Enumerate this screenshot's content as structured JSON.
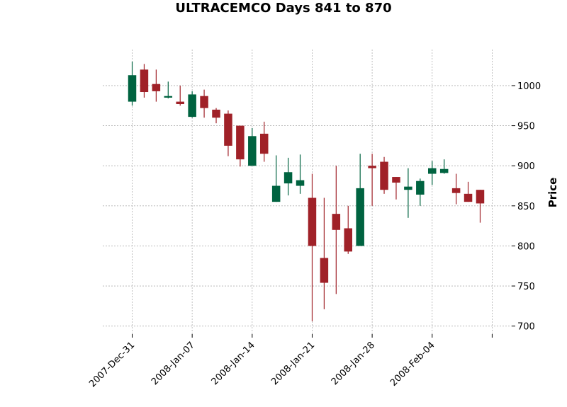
{
  "chart_data": {
    "type": "candlestick",
    "title": "ULTRACEMCO Days 841 to 870",
    "xlabel": "",
    "ylabel": "Price",
    "ylim": [
      690,
      1045
    ],
    "y_ticks": [
      700,
      750,
      800,
      850,
      900,
      950,
      1000
    ],
    "grid": true,
    "colors": {
      "up": "#006340",
      "down": "#a02128"
    },
    "x_ticks": [
      {
        "label": "2007-Dec-31",
        "index": 0
      },
      {
        "label": "2008-Jan-07",
        "index": 5
      },
      {
        "label": "2008-Jan-14",
        "index": 10
      },
      {
        "label": "2008-Jan-21",
        "index": 15
      },
      {
        "label": "2008-Jan-28",
        "index": 20
      },
      {
        "label": "2008-Feb-04",
        "index": 25
      },
      {
        "label": "",
        "index": 30
      }
    ],
    "candles": [
      {
        "date": "2007-12-31",
        "open": 980,
        "high": 1030,
        "low": 975,
        "close": 1013
      },
      {
        "date": "2008-01-01",
        "open": 1020,
        "high": 1027,
        "low": 985,
        "close": 992
      },
      {
        "date": "2008-01-02",
        "open": 1002,
        "high": 1020,
        "low": 980,
        "close": 993
      },
      {
        "date": "2008-01-03",
        "open": 985,
        "high": 1005,
        "low": 984,
        "close": 987
      },
      {
        "date": "2008-01-04",
        "open": 980,
        "high": 1000,
        "low": 975,
        "close": 977
      },
      {
        "date": "2008-01-07",
        "open": 961,
        "high": 993,
        "low": 960,
        "close": 989
      },
      {
        "date": "2008-01-08",
        "open": 987,
        "high": 995,
        "low": 960,
        "close": 972
      },
      {
        "date": "2008-01-09",
        "open": 970,
        "high": 972,
        "low": 953,
        "close": 960
      },
      {
        "date": "2008-01-10",
        "open": 965,
        "high": 969,
        "low": 912,
        "close": 925
      },
      {
        "date": "2008-01-11",
        "open": 950,
        "high": 950,
        "low": 899,
        "close": 908
      },
      {
        "date": "2008-01-14",
        "open": 900,
        "high": 947,
        "low": 900,
        "close": 937
      },
      {
        "date": "2008-01-15",
        "open": 940,
        "high": 955,
        "low": 905,
        "close": 915
      },
      {
        "date": "2008-01-16",
        "open": 855,
        "high": 913,
        "low": 855,
        "close": 875
      },
      {
        "date": "2008-01-17",
        "open": 878,
        "high": 910,
        "low": 863,
        "close": 892
      },
      {
        "date": "2008-01-18",
        "open": 875,
        "high": 914,
        "low": 865,
        "close": 882
      },
      {
        "date": "2008-01-21",
        "open": 860,
        "high": 890,
        "low": 706,
        "close": 800
      },
      {
        "date": "2008-01-22",
        "open": 785,
        "high": 860,
        "low": 721,
        "close": 754
      },
      {
        "date": "2008-01-23",
        "open": 840,
        "high": 900,
        "low": 740,
        "close": 820
      },
      {
        "date": "2008-01-24",
        "open": 822,
        "high": 850,
        "low": 790,
        "close": 793
      },
      {
        "date": "2008-01-25",
        "open": 800,
        "high": 915,
        "low": 800,
        "close": 872
      },
      {
        "date": "2008-01-28",
        "open": 900,
        "high": 915,
        "low": 850,
        "close": 897
      },
      {
        "date": "2008-01-29",
        "open": 905,
        "high": 911,
        "low": 865,
        "close": 870
      },
      {
        "date": "2008-01-30",
        "open": 886,
        "high": 886,
        "low": 858,
        "close": 879
      },
      {
        "date": "2008-01-31",
        "open": 870,
        "high": 897,
        "low": 835,
        "close": 874
      },
      {
        "date": "2008-02-01",
        "open": 864,
        "high": 884,
        "low": 850,
        "close": 881
      },
      {
        "date": "2008-02-04",
        "open": 890,
        "high": 906,
        "low": 876,
        "close": 897
      },
      {
        "date": "2008-02-05",
        "open": 891,
        "high": 908,
        "low": 890,
        "close": 896
      },
      {
        "date": "2008-02-06",
        "open": 872,
        "high": 890,
        "low": 852,
        "close": 866
      },
      {
        "date": "2008-02-07",
        "open": 865,
        "high": 880,
        "low": 855,
        "close": 855
      },
      {
        "date": "2008-02-08",
        "open": 870,
        "high": 870,
        "low": 829,
        "close": 853
      }
    ]
  }
}
